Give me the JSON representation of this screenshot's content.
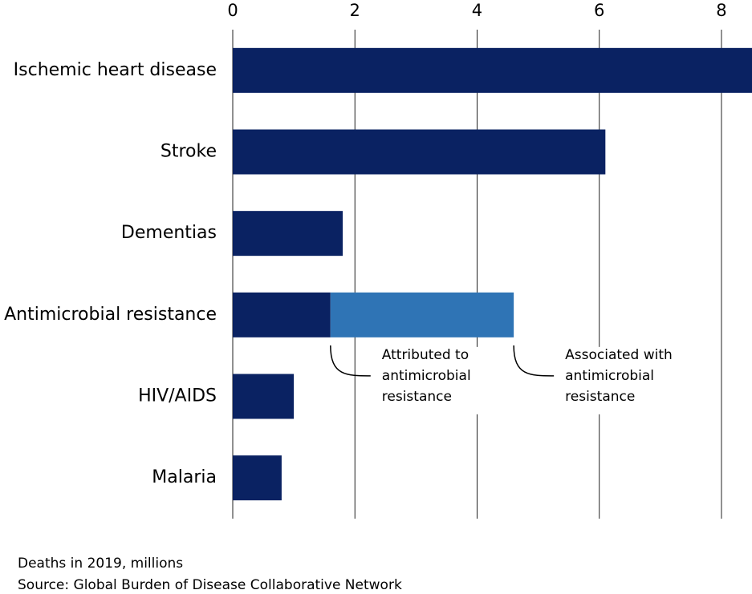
{
  "chart_data": {
    "type": "hbar-stacked",
    "categories": [
      "Ischemic heart disease",
      "Stroke",
      "Dementias",
      "Antimicrobial resistance",
      "HIV/AIDS",
      "Malaria"
    ],
    "series": [
      {
        "name": "Attributed to\nantimicrobial\nresistance",
        "color": "#0a2262",
        "values": [
          8.5,
          6.1,
          1.8,
          1.6,
          1.0,
          0.8
        ]
      },
      {
        "name": "Associated with\nantimicrobial\nresistance",
        "color": "#2f74b5",
        "values": [
          null,
          null,
          null,
          3.0,
          null,
          null
        ]
      }
    ],
    "xlim": [
      0,
      8.5
    ],
    "xticks": [
      0,
      2,
      4,
      6,
      8
    ],
    "grid": true,
    "caption": "Deaths in 2019, millions",
    "source": "Source: Global Burden of Disease Collaborative Network"
  }
}
